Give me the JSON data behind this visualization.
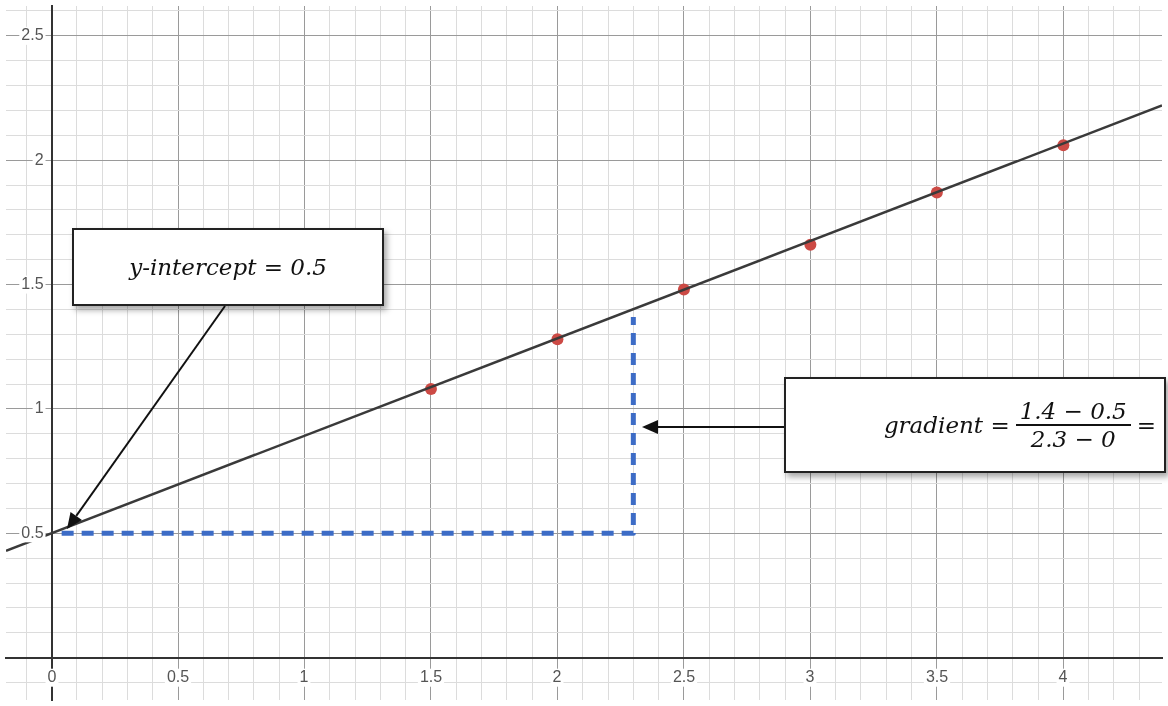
{
  "chart_data": {
    "type": "scatter",
    "xlim": [
      -0.18,
      4.39
    ],
    "ylim": [
      -0.17,
      2.62
    ],
    "xticks": [
      {
        "value": -0.1,
        "label": null
      },
      0,
      {
        "value": 0.1,
        "label": null
      },
      {
        "value": 0.2,
        "label": null
      },
      {
        "value": 0.3,
        "label": null
      },
      {
        "value": 0.4,
        "label": null
      },
      0.5,
      {
        "value": 0.6,
        "label": null
      },
      {
        "value": 0.7,
        "label": null
      },
      {
        "value": 0.8,
        "label": null
      },
      {
        "value": 0.9,
        "label": null
      },
      1,
      {
        "value": 1.1,
        "label": null
      },
      {
        "value": 1.2,
        "label": null
      },
      {
        "value": 1.3,
        "label": null
      },
      {
        "value": 1.4,
        "label": null
      },
      1.5,
      {
        "value": 1.6,
        "label": null
      },
      {
        "value": 1.7,
        "label": null
      },
      {
        "value": 1.8,
        "label": null
      },
      {
        "value": 1.9,
        "label": null
      },
      2,
      {
        "value": 2.1,
        "label": null
      },
      {
        "value": 2.2,
        "label": null
      },
      {
        "value": 2.3,
        "label": null
      },
      {
        "value": 2.4,
        "label": null
      },
      2.5,
      {
        "value": 2.6,
        "label": null
      },
      {
        "value": 2.7,
        "label": null
      },
      {
        "value": 2.8,
        "label": null
      },
      {
        "value": 2.9,
        "label": null
      },
      3,
      {
        "value": 3.1,
        "label": null
      },
      {
        "value": 3.2,
        "label": null
      },
      {
        "value": 3.3,
        "label": null
      },
      {
        "value": 3.4,
        "label": null
      },
      3.5,
      {
        "value": 3.6,
        "label": null
      },
      {
        "value": 3.7,
        "label": null
      },
      {
        "value": 3.8,
        "label": null
      },
      {
        "value": 3.9,
        "label": null
      },
      4,
      {
        "value": 4.1,
        "label": null
      },
      {
        "value": 4.2,
        "label": null
      },
      {
        "value": 4.3,
        "label": null
      }
    ],
    "yticks": [
      {
        "value": -0.1,
        "label": null
      },
      {
        "value": 0,
        "label": null
      },
      {
        "value": 0.1,
        "label": null
      },
      {
        "value": 0.2,
        "label": null
      },
      {
        "value": 0.3,
        "label": null
      },
      {
        "value": 0.4,
        "label": null
      },
      0.5,
      {
        "value": 0.6,
        "label": null
      },
      {
        "value": 0.7,
        "label": null
      },
      {
        "value": 0.8,
        "label": null
      },
      {
        "value": 0.9,
        "label": null
      },
      1,
      {
        "value": 1.1,
        "label": null
      },
      {
        "value": 1.2,
        "label": null
      },
      {
        "value": 1.3,
        "label": null
      },
      {
        "value": 1.4,
        "label": null
      },
      1.5,
      {
        "value": 1.6,
        "label": null
      },
      {
        "value": 1.7,
        "label": null
      },
      {
        "value": 1.8,
        "label": null
      },
      {
        "value": 1.9,
        "label": null
      },
      2,
      {
        "value": 2.1,
        "label": null
      },
      {
        "value": 2.2,
        "label": null
      },
      {
        "value": 2.3,
        "label": null
      },
      {
        "value": 2.4,
        "label": null
      },
      2.5,
      {
        "value": 2.6,
        "label": null
      }
    ],
    "grid": true,
    "marker": "circle",
    "series": [
      {
        "type": "line",
        "color": "#3a3a3a",
        "marker": "none",
        "x": [
          -0.18,
          4.39
        ],
        "values": [
          0.43,
          2.22
        ]
      },
      {
        "type": "line",
        "color": "#3d6cc6",
        "marker": "none",
        "line_style": "dashed",
        "x": [
          0.04,
          2.3,
          2.3
        ],
        "values": [
          0.5,
          0.5,
          1.37
        ]
      },
      {
        "type": "scatter",
        "color": "#cc4a45",
        "x": [
          1.5,
          2,
          2.5,
          3,
          3.5,
          4
        ],
        "values": [
          1.08,
          1.28,
          1.48,
          1.66,
          1.87,
          2.06
        ]
      }
    ],
    "annotations": [
      "y-intercept = 0.5",
      "gradient =",
      "1.4 − 0.5",
      "2.3 − 0",
      "="
    ]
  }
}
